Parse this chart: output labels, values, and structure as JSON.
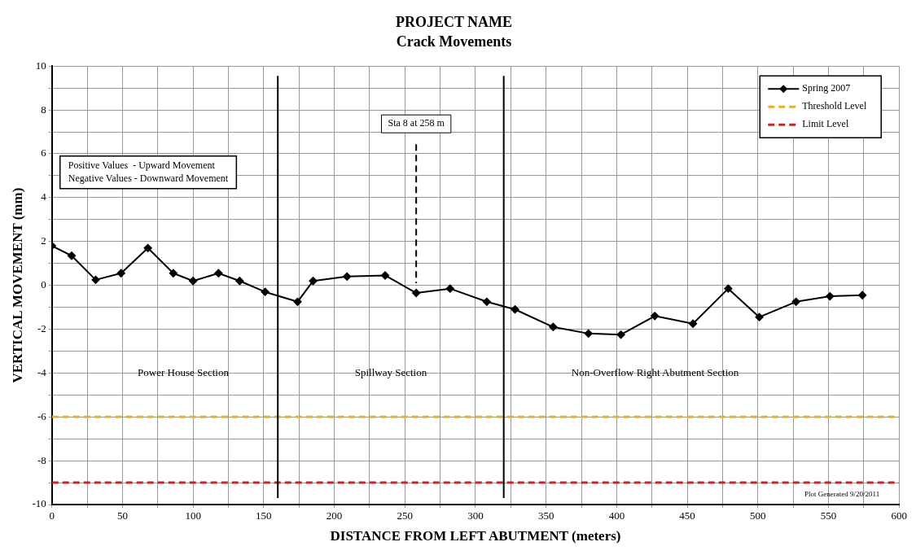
{
  "chart_data": {
    "type": "line",
    "title": "PROJECT NAME",
    "subtitle": "Crack Movements",
    "xlabel": "DISTANCE FROM LEFT ABUTMENT (meters)",
    "ylabel": "VERTICAL MOVEMENT (mm)",
    "series": [
      {
        "name": "Spring 2007",
        "color": "#000000",
        "marker": "diamond",
        "x": [
          0,
          14,
          31,
          49,
          68,
          86,
          100,
          118,
          133,
          151,
          174,
          185,
          209,
          236,
          258,
          282,
          308,
          328,
          355,
          380,
          403,
          427,
          454,
          479,
          501,
          527,
          551,
          574
        ],
        "values": [
          1.8,
          1.35,
          0.25,
          0.55,
          1.7,
          0.55,
          0.2,
          0.55,
          0.2,
          -0.3,
          -0.75,
          0.2,
          0.4,
          0.45,
          -0.35,
          -0.15,
          -0.75,
          -1.1,
          -1.9,
          -2.2,
          -2.25,
          -1.4,
          -1.75,
          -0.15,
          -1.45,
          -0.75,
          -0.5,
          -0.45
        ]
      },
      {
        "name": "Threshold Level",
        "color": "#e8b030",
        "line_style": "dashed",
        "marker": "none",
        "x": [
          0,
          600
        ],
        "values": [
          -6,
          -6
        ]
      },
      {
        "name": "Limit Level",
        "color": "#c0282d",
        "line_style": "dashed",
        "marker": "none",
        "x": [
          0,
          600
        ],
        "values": [
          -9,
          -9
        ]
      }
    ],
    "ref_lines": [
      {
        "axis": "x",
        "value": 160,
        "color": "#000000",
        "line_style": "solid"
      },
      {
        "axis": "x",
        "value": 320,
        "color": "#000000",
        "line_style": "solid"
      },
      {
        "axis": "x",
        "value": 258,
        "label": "Sta 8 at 258 m",
        "color": "#000000",
        "line_style": "dashed"
      }
    ],
    "annotations": [
      "Positive Values  - Upward Movement\nNegative Values - Downward Movement",
      "Power House Section",
      "Spillway Section",
      "Non-Overflow Right Abutment Section",
      "Plot Generated 9/20/2011"
    ],
    "xlim": [
      0,
      600
    ],
    "xticks": [
      0,
      {
        "value": 25,
        "label": null
      },
      50,
      {
        "value": 75,
        "label": null
      },
      100,
      {
        "value": 125,
        "label": null
      },
      150,
      {
        "value": 175,
        "label": null
      },
      200,
      {
        "value": 225,
        "label": null
      },
      250,
      {
        "value": 275,
        "label": null
      },
      300,
      {
        "value": 325,
        "label": null
      },
      350,
      {
        "value": 375,
        "label": null
      },
      400,
      {
        "value": 425,
        "label": null
      },
      450,
      {
        "value": 475,
        "label": null
      },
      500,
      {
        "value": 525,
        "label": null
      },
      550,
      {
        "value": 575,
        "label": null
      },
      600
    ],
    "ylim": [
      -10,
      10
    ],
    "yticks": [
      -10,
      {
        "value": -9,
        "label": null
      },
      -8,
      {
        "value": -7,
        "label": null
      },
      -6,
      {
        "value": -5,
        "label": null
      },
      -4,
      {
        "value": -3,
        "label": null
      },
      -2,
      {
        "value": -1,
        "label": null
      },
      0,
      {
        "value": 1,
        "label": null
      },
      2,
      {
        "value": 3,
        "label": null
      },
      4,
      {
        "value": 5,
        "label": null
      },
      6,
      {
        "value": 7,
        "label": null
      },
      8,
      {
        "value": 9,
        "label": null
      },
      10
    ],
    "grid": true,
    "legend": "top right"
  }
}
